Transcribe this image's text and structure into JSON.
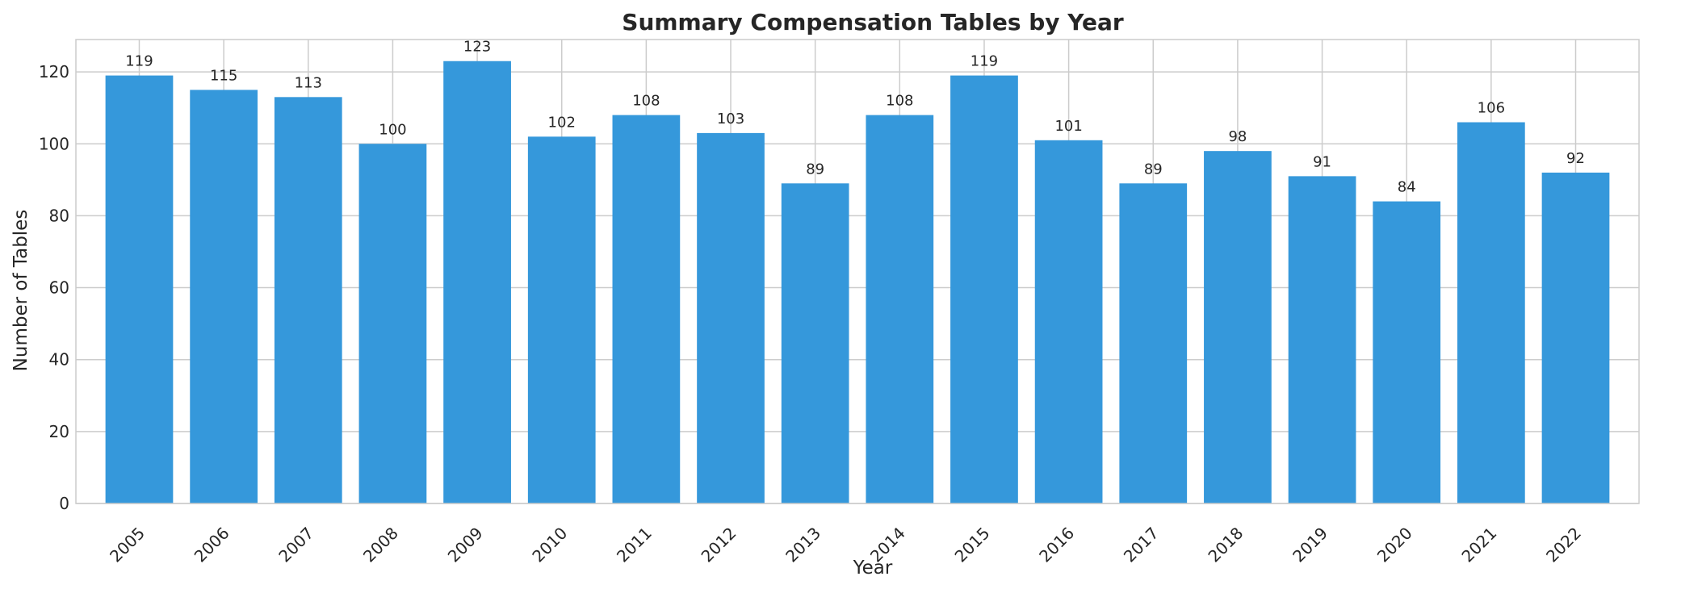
{
  "chart_data": {
    "type": "bar",
    "title": "Summary Compensation Tables by Year",
    "xlabel": "Year",
    "ylabel": "Number of Tables",
    "categories": [
      "2005",
      "2006",
      "2007",
      "2008",
      "2009",
      "2010",
      "2011",
      "2012",
      "2013",
      "2014",
      "2015",
      "2016",
      "2017",
      "2018",
      "2019",
      "2020",
      "2021",
      "2022"
    ],
    "values": [
      119,
      115,
      113,
      100,
      123,
      102,
      108,
      103,
      89,
      108,
      119,
      101,
      89,
      98,
      91,
      84,
      106,
      92
    ],
    "ylim": [
      0,
      129
    ],
    "yticks": [
      0,
      20,
      40,
      60,
      80,
      100,
      120
    ],
    "grid": true,
    "bar_color": "#3598db",
    "data_labels": true
  }
}
